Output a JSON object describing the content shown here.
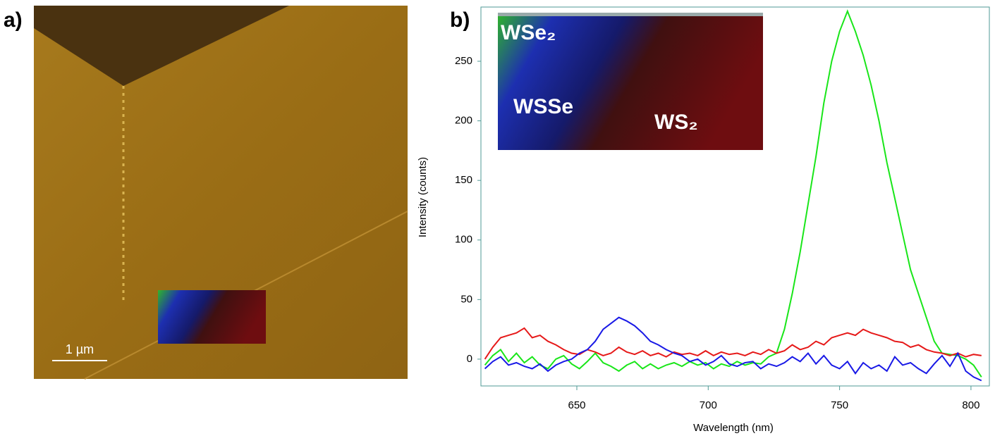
{
  "panels": {
    "a": {
      "label": "a)",
      "scale_bar": "1 µm"
    },
    "b": {
      "label": "b)"
    }
  },
  "chart_data": {
    "type": "line",
    "xlabel": "Wavelength (nm)",
    "ylabel": "Intensity (counts)",
    "inset_labels": [
      "WSe₂",
      "WSSe",
      "WS₂"
    ],
    "x": [
      615,
      618,
      621,
      624,
      627,
      630,
      633,
      636,
      639,
      642,
      645,
      648,
      651,
      654,
      657,
      660,
      663,
      666,
      669,
      672,
      675,
      678,
      681,
      684,
      687,
      690,
      693,
      696,
      699,
      702,
      705,
      708,
      711,
      714,
      717,
      720,
      723,
      726,
      729,
      732,
      735,
      738,
      741,
      744,
      747,
      750,
      753,
      756,
      759,
      762,
      765,
      768,
      771,
      774,
      777,
      780,
      783,
      786,
      789,
      792,
      795,
      798,
      801,
      804
    ],
    "series": [
      {
        "color": "#19e619",
        "values": [
          -5,
          3,
          8,
          -2,
          5,
          -3,
          2,
          -5,
          -8,
          0,
          3,
          -4,
          -8,
          -2,
          5,
          -3,
          -6,
          -10,
          -5,
          -2,
          -8,
          -4,
          -8,
          -5,
          -3,
          -6,
          -2,
          -5,
          -3,
          -8,
          -4,
          -6,
          -2,
          -5,
          -3,
          -4,
          2,
          5,
          25,
          55,
          90,
          130,
          170,
          215,
          250,
          275,
          292,
          275,
          255,
          230,
          200,
          165,
          135,
          105,
          75,
          55,
          35,
          15,
          5,
          4,
          3,
          0,
          -5,
          -15
        ]
      },
      {
        "color": "#e61919",
        "values": [
          0,
          10,
          18,
          20,
          22,
          26,
          18,
          20,
          15,
          12,
          8,
          5,
          4,
          8,
          6,
          3,
          5,
          10,
          6,
          4,
          7,
          3,
          5,
          2,
          6,
          4,
          5,
          3,
          7,
          3,
          6,
          4,
          5,
          3,
          6,
          4,
          8,
          5,
          7,
          12,
          8,
          10,
          15,
          12,
          18,
          20,
          22,
          20,
          25,
          22,
          20,
          18,
          15,
          14,
          10,
          12,
          8,
          6,
          5,
          3,
          5,
          2,
          4,
          3
        ]
      },
      {
        "color": "#1919e6",
        "values": [
          -8,
          -2,
          2,
          -5,
          -3,
          -6,
          -8,
          -4,
          -10,
          -5,
          -2,
          0,
          5,
          8,
          15,
          25,
          30,
          35,
          32,
          28,
          22,
          15,
          12,
          8,
          5,
          3,
          -2,
          0,
          -5,
          -2,
          3,
          -4,
          -6,
          -3,
          -2,
          -8,
          -4,
          -6,
          -3,
          2,
          -2,
          5,
          -4,
          3,
          -5,
          -8,
          -2,
          -12,
          -3,
          -8,
          -5,
          -10,
          2,
          -5,
          -3,
          -8,
          -12,
          -4,
          3,
          -6,
          5,
          -10,
          -15,
          -18
        ]
      }
    ],
    "xlim": [
      613.5,
      807
    ],
    "xticks": [
      650,
      700,
      750,
      800
    ],
    "ylim": [
      -22.5,
      295.5
    ],
    "yticks": [
      0,
      50,
      100,
      150,
      200,
      250
    ]
  }
}
